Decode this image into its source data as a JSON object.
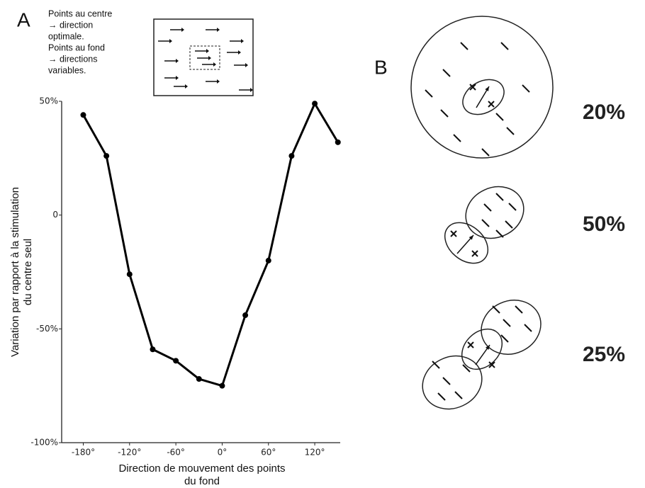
{
  "chart_data": {
    "type": "line",
    "x": [
      -180,
      -150,
      -120,
      -90,
      -60,
      -30,
      0,
      30,
      60,
      90,
      120,
      150
    ],
    "values": [
      44,
      26,
      -26,
      -59,
      -64,
      -72,
      -75,
      -44,
      -20,
      26,
      49,
      32
    ],
    "color": "#000000",
    "xlim": [
      -208,
      153
    ],
    "ylim": [
      -100,
      50
    ],
    "xticks": [
      {
        "value": -180,
        "label": "-180°"
      },
      {
        "value": -120,
        "label": "-120°"
      },
      {
        "value": -60,
        "label": "-60°"
      },
      {
        "value": 0,
        "label": "0°"
      },
      {
        "value": 60,
        "label": "60°"
      },
      {
        "value": 120,
        "label": "120°"
      }
    ],
    "yticks": [
      {
        "value": 50,
        "label": "50%"
      },
      0,
      {
        "value": -50,
        "label": "-50%"
      },
      {
        "value": -100,
        "label": "-100%"
      }
    ],
    "xlabel": [
      "Direction de mouvement des points",
      "du fond"
    ],
    "ylabel": [
      "Variation par rapport à la stimulation",
      "du centre seul"
    ]
  },
  "figure": {
    "panel_a": "A",
    "panel_b": "B",
    "inset_text": [
      "Points au centre",
      "→ direction",
      "optimale.",
      "Points au fond",
      "→ directions",
      "variables."
    ],
    "responses": [
      "20%",
      "50%",
      "25%"
    ]
  }
}
